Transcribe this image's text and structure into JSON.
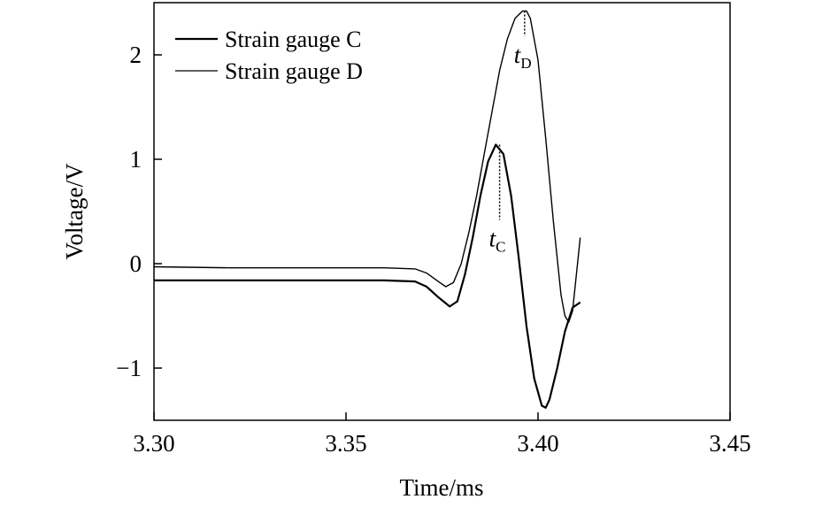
{
  "chart_data": {
    "type": "line",
    "xlabel": "Time/ms",
    "ylabel": "Voltage/V",
    "xlim": [
      3.3,
      3.45
    ],
    "ylim": [
      -1.5,
      2.5
    ],
    "xticks": [
      "3.30",
      "3.35",
      "3.40",
      "3.45"
    ],
    "yticks": [
      "−1",
      "0",
      "1",
      "2"
    ],
    "grid": false,
    "legend_position": "top-left",
    "series": [
      {
        "name": "Strain gauge C",
        "x": [
          3.3,
          3.32,
          3.34,
          3.35,
          3.36,
          3.368,
          3.371,
          3.374,
          3.377,
          3.379,
          3.381,
          3.383,
          3.385,
          3.387,
          3.389,
          3.391,
          3.393,
          3.395,
          3.397,
          3.399,
          3.401,
          3.402,
          3.403,
          3.405,
          3.407,
          3.409,
          3.411
        ],
        "y": [
          -0.16,
          -0.16,
          -0.16,
          -0.16,
          -0.16,
          -0.17,
          -0.22,
          -0.32,
          -0.41,
          -0.36,
          -0.1,
          0.25,
          0.65,
          0.98,
          1.14,
          1.05,
          0.65,
          0.05,
          -0.6,
          -1.1,
          -1.36,
          -1.38,
          -1.3,
          -1.0,
          -0.65,
          -0.42,
          -0.37
        ]
      },
      {
        "name": "Strain gauge D",
        "x": [
          3.3,
          3.32,
          3.34,
          3.35,
          3.36,
          3.368,
          3.371,
          3.374,
          3.376,
          3.378,
          3.38,
          3.382,
          3.384,
          3.386,
          3.388,
          3.39,
          3.392,
          3.394,
          3.396,
          3.397,
          3.398,
          3.4,
          3.402,
          3.404,
          3.406,
          3.407,
          3.408,
          3.409,
          3.41,
          3.411
        ],
        "y": [
          -0.03,
          -0.04,
          -0.04,
          -0.04,
          -0.04,
          -0.05,
          -0.09,
          -0.17,
          -0.22,
          -0.18,
          0.0,
          0.3,
          0.65,
          1.05,
          1.45,
          1.85,
          2.15,
          2.35,
          2.42,
          2.42,
          2.35,
          1.95,
          1.2,
          0.4,
          -0.3,
          -0.5,
          -0.56,
          -0.45,
          -0.1,
          0.25
        ]
      }
    ],
    "annotations": [
      {
        "main": "t",
        "sub": "C",
        "x": 3.39,
        "y": 1.14,
        "y_to": 0.42
      },
      {
        "main": "t",
        "sub": "D",
        "x": 3.3965,
        "y": 2.42,
        "y_to": 2.18
      }
    ]
  }
}
